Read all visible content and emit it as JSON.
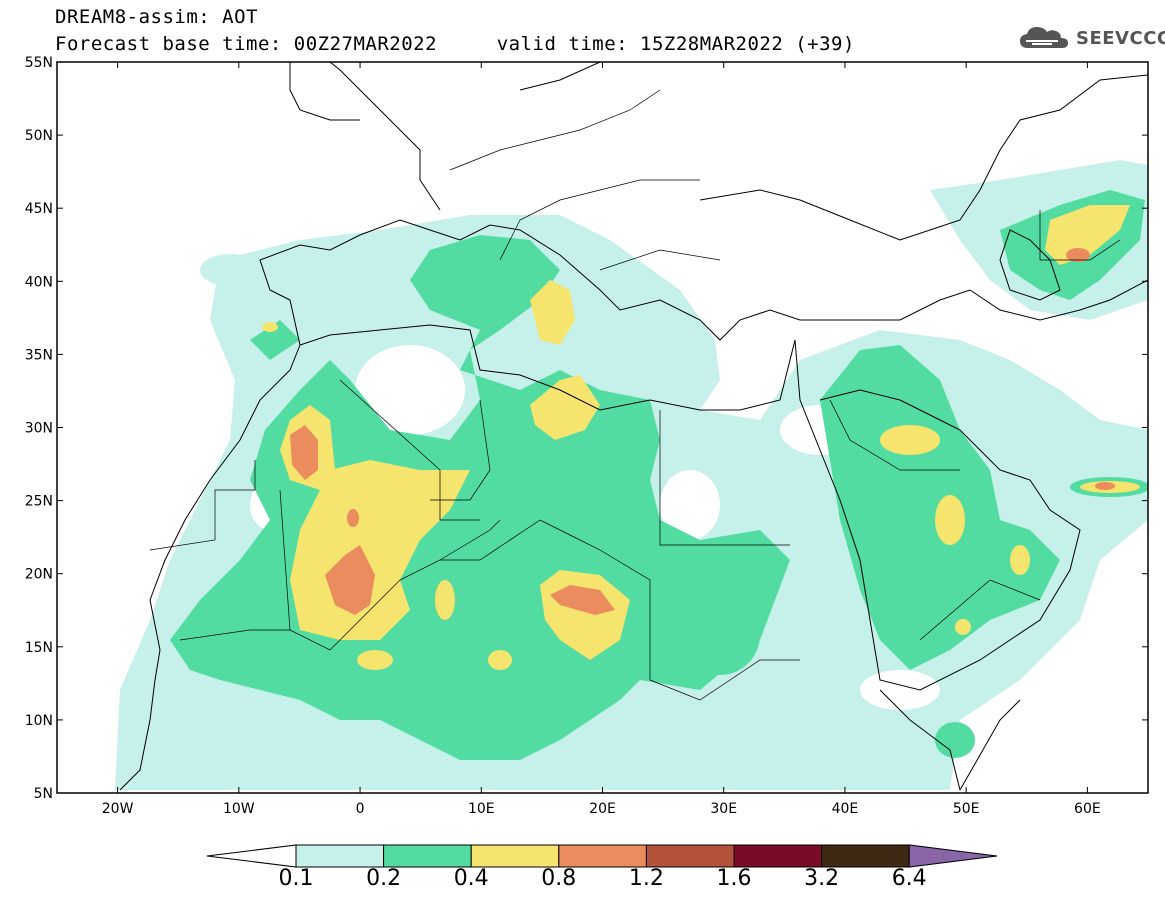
{
  "header": {
    "line1": "DREAM8-assim: AOT",
    "line2": "Forecast base time: 00Z27MAR2022     valid time: 15Z28MAR2022 (+39)"
  },
  "logo": {
    "text": "SEEVCCC",
    "icon": "cloud-icon"
  },
  "map": {
    "lon_range": [
      -25,
      65
    ],
    "lat_range": [
      5,
      55
    ],
    "x_ticks": [
      "20W",
      "10W",
      "0",
      "10E",
      "20E",
      "30E",
      "40E",
      "50E",
      "60E"
    ],
    "y_ticks": [
      "55N",
      "50N",
      "45N",
      "40N",
      "35N",
      "30N",
      "25N",
      "20N",
      "15N",
      "10N",
      "5N"
    ]
  },
  "colorbar": {
    "labels": [
      "0.1",
      "0.2",
      "0.4",
      "0.8",
      "1.2",
      "1.6",
      "3.2",
      "6.4"
    ],
    "colors": [
      "#c6f0ea",
      "#52dca2",
      "#f5e46e",
      "#eb8c5e",
      "#b4523e",
      "#7a0a25",
      "#3f2814",
      "#8a66a8"
    ]
  },
  "colors": {
    "low": "#c6f0ea",
    "mid": "#52dca2",
    "high": "#f5e46e",
    "very_high": "#eb8c5e",
    "extreme": "#b4523e"
  }
}
